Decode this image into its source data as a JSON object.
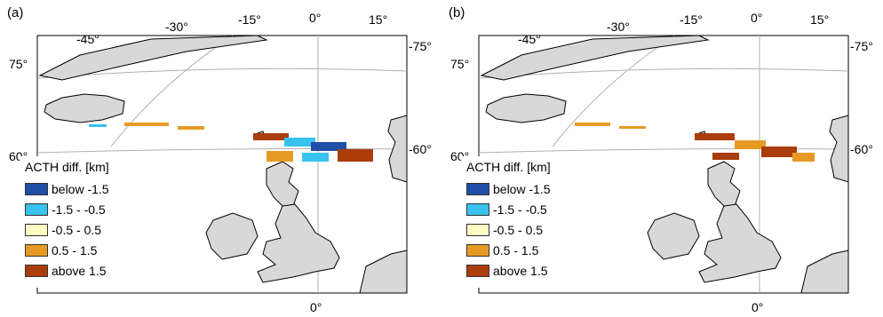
{
  "panels": [
    {
      "tag": "(a)",
      "lon_top": [
        "-45°",
        "-30°",
        "-15°",
        "0°",
        "15°"
      ],
      "lat_left": [
        "75°",
        "60°"
      ],
      "lat_right": [
        "-75°",
        "-60°"
      ],
      "lon_bottom": "0°"
    },
    {
      "tag": "(b)",
      "lon_top": [
        "-45°",
        "-30°",
        "-15°",
        "0°",
        "15°"
      ],
      "lat_left": [
        "75°",
        "60°"
      ],
      "lat_right": [
        "-75°",
        "-60°"
      ],
      "lon_bottom": "0°"
    }
  ],
  "legend": {
    "title": "ACTH diff. [km]",
    "items": [
      {
        "label": "below -1.5",
        "color": "#1f4fa6"
      },
      {
        "label": "-1.5 - -0.5",
        "color": "#38c2ee"
      },
      {
        "label": "-0.5 - 0.5",
        "color": "#fffcc4"
      },
      {
        "label": "0.5 - 1.5",
        "color": "#e69a24"
      },
      {
        "label": "above 1.5",
        "color": "#ab3d0c"
      }
    ]
  },
  "colors": {
    "land": "#d8d8d8",
    "coast": "#000000",
    "grid": "#b0b0b0"
  }
}
